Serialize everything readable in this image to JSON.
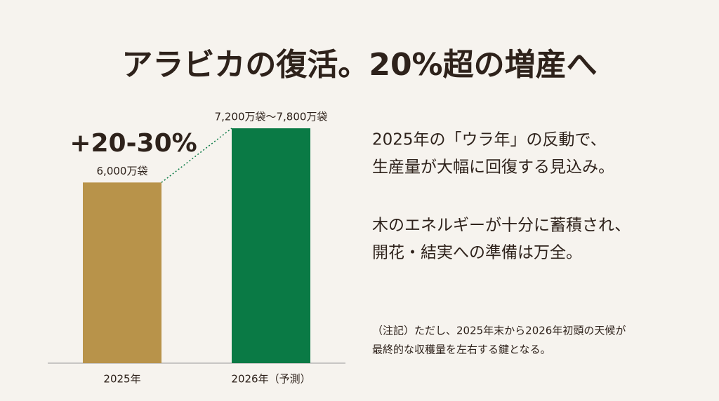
{
  "chart_data": {
    "type": "bar",
    "title": "アラビカの復活。20%超の増産へ",
    "categories": [
      "2025年",
      "2026年（予測）"
    ],
    "values": [
      6000,
      7800
    ],
    "value_labels": [
      "6,000万袋",
      "7,200万袋〜7,800万袋"
    ],
    "colors": [
      "#b8934a",
      "#0a7a45"
    ],
    "annotation": "+20-30%"
  },
  "text": {
    "paragraphs": [
      [
        "2025年の「ウラ年」の反動で、",
        "生産量が大幅に回復する見込み。"
      ],
      [
        "木のエネルギーが十分に蓄積され、",
        "開花・結実への準備は万全。"
      ]
    ],
    "footnote": [
      "（注記）ただし、2025年末から2026年初頭の天候が",
      "最終的な収穫量を左右する鍵となる。"
    ]
  }
}
